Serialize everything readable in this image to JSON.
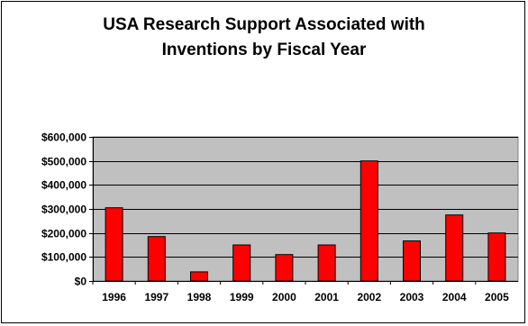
{
  "chart_data": {
    "type": "bar",
    "title_lines": [
      "USA Research Support Associated with",
      "Inventions by Fiscal Year"
    ],
    "categories": [
      "1996",
      "1997",
      "1998",
      "1999",
      "2000",
      "2001",
      "2002",
      "2003",
      "2004",
      "2005"
    ],
    "values": [
      305000,
      185000,
      38000,
      150000,
      110000,
      150000,
      500000,
      167000,
      275000,
      200000
    ],
    "ylim": [
      0,
      600000
    ],
    "yticks": [
      0,
      100000,
      200000,
      300000,
      400000,
      500000,
      600000
    ],
    "ytick_labels": [
      "$0",
      "$100,000",
      "$200,000",
      "$300,000",
      "$400,000",
      "$500,000",
      "$600,000"
    ],
    "xlabel": "",
    "ylabel": "",
    "grid": true,
    "legend": "none",
    "colors": {
      "bar_fill": "#ff0000",
      "bar_stroke": "#000000",
      "plot_background": "#c0c0c0",
      "gridline": "#000000"
    }
  }
}
